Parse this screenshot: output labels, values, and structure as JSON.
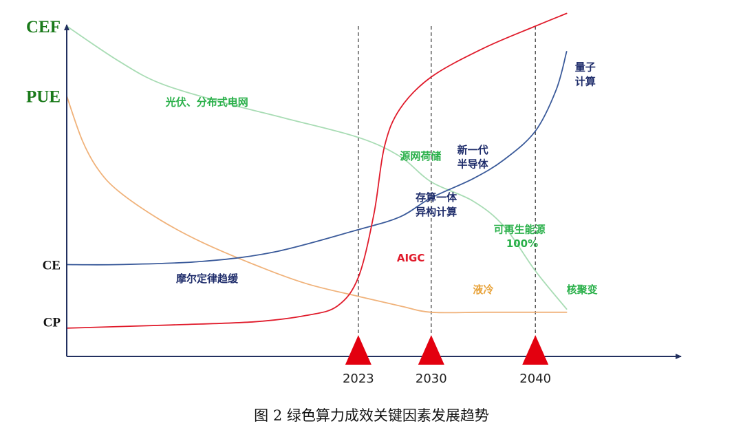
{
  "caption": "图 2 绿色算力成效关键因素发展趋势",
  "chart_data": {
    "type": "line",
    "title": "",
    "x_domain": [
      1995,
      2053
    ],
    "y_domain": [
      0,
      100
    ],
    "x_ticks": [
      "2023",
      "2030",
      "2040"
    ],
    "milestones": [
      2023,
      2030,
      2040
    ],
    "y_labels": [
      {
        "text": "CEF",
        "color": "#1a7a1a",
        "value": 100
      },
      {
        "text": "PUE",
        "color": "#1a7a1a",
        "value": 78
      },
      {
        "text": "CE",
        "color": "#111111",
        "value": 25
      },
      {
        "text": "CP",
        "color": "#111111",
        "value": 7
      }
    ],
    "series": [
      {
        "key": "cef",
        "color": "#a8dcb4",
        "x": [
          1995,
          2000,
          2004,
          2010,
          2016,
          2023,
          2027,
          2030,
          2034,
          2037,
          2040,
          2043
        ],
        "y": [
          100,
          89,
          82,
          76,
          71,
          65,
          59,
          51,
          45,
          37,
          23,
          11
        ]
      },
      {
        "key": "pue",
        "color": "#f0b27a",
        "x": [
          1995,
          1996.5,
          1998,
          2000,
          2004,
          2008,
          2013,
          2018,
          2023,
          2027,
          2030,
          2035,
          2040,
          2043
        ],
        "y": [
          78,
          64,
          55,
          48,
          39,
          32,
          25,
          19,
          15,
          12,
          10,
          10,
          10,
          10
        ]
      },
      {
        "key": "ce",
        "color": "#3a5a9a",
        "x": [
          1995,
          2000,
          2008,
          2015,
          2023,
          2027,
          2030,
          2034,
          2037,
          2040,
          2042,
          2043
        ],
        "y": [
          25,
          25,
          26,
          29,
          36,
          40,
          46,
          52,
          58,
          67,
          80,
          92
        ]
      },
      {
        "key": "cp",
        "color": "#e01b2b",
        "x": [
          1995,
          2005,
          2013,
          2018,
          2021,
          2023,
          2024.5,
          2025.5,
          2027,
          2030,
          2035,
          2040,
          2043
        ],
        "y": [
          5,
          6,
          7,
          9,
          12,
          21,
          41,
          62,
          74,
          84,
          93,
          100,
          104
        ]
      }
    ],
    "annotations": [
      {
        "text": "光伏、分布式电网",
        "color": "#2ab04a",
        "x": 2004.5,
        "y": 75
      },
      {
        "text": "源网荷储",
        "color": "#2ab04a",
        "x": 2027,
        "y": 58
      },
      {
        "text": "可再生能源",
        "color": "#2ab04a",
        "x": 2036,
        "y": 35
      },
      {
        "text": "100%",
        "color": "#2ab04a",
        "x": 2037.2,
        "y": 30.5
      },
      {
        "text": "核聚变",
        "color": "#2ab04a",
        "x": 2043,
        "y": 16
      },
      {
        "text": "液冷",
        "color": "#e8a33a",
        "x": 2034,
        "y": 16
      },
      {
        "text": "摩尔定律趋缓",
        "color": "#1f2d6b",
        "x": 2005.5,
        "y": 19.5
      },
      {
        "text": "存算一体",
        "color": "#1f2d6b",
        "x": 2028.5,
        "y": 45
      },
      {
        "text": "异构计算",
        "color": "#1f2d6b",
        "x": 2028.5,
        "y": 40.5
      },
      {
        "text": "新一代",
        "color": "#1f2d6b",
        "x": 2032.5,
        "y": 60
      },
      {
        "text": "半导体",
        "color": "#1f2d6b",
        "x": 2032.5,
        "y": 55.5
      },
      {
        "text": "量子",
        "color": "#1f2d6b",
        "x": 2043.8,
        "y": 86
      },
      {
        "text": "计算",
        "color": "#1f2d6b",
        "x": 2043.8,
        "y": 81.5
      },
      {
        "text": "AIGC",
        "color": "#e01b2b",
        "x": 2026.7,
        "y": 26,
        "size": 20
      }
    ]
  }
}
